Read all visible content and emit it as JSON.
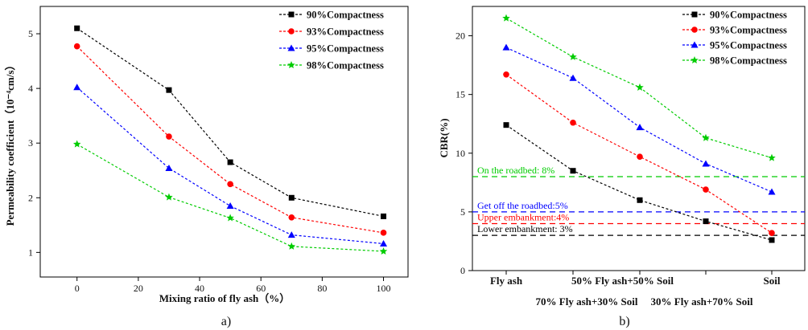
{
  "chart_data": [
    {
      "type": "line",
      "panel": "a)",
      "xlabel": "Mixing ratio of fly ash（%）",
      "ylabel": "Permeability coefficient（10⁻⁴cm/s）",
      "xlim": [
        -12,
        108
      ],
      "ylim": [
        0.55,
        5.5
      ],
      "xticks": [
        0,
        20,
        40,
        60,
        80,
        100
      ],
      "yticks": [
        1,
        2,
        3,
        4,
        5
      ],
      "x": [
        0,
        30,
        50,
        70,
        100
      ],
      "series": [
        {
          "name": "90%Compactness",
          "color": "#000000",
          "marker": "square",
          "values": [
            5.1,
            3.97,
            2.65,
            2.0,
            1.66
          ]
        },
        {
          "name": "93%Compactness",
          "color": "#ff0000",
          "marker": "circle",
          "values": [
            4.77,
            3.12,
            2.25,
            1.64,
            1.36
          ]
        },
        {
          "name": "95%Compactness",
          "color": "#0000ff",
          "marker": "triangle",
          "values": [
            4.02,
            2.54,
            1.85,
            1.32,
            1.16
          ]
        },
        {
          "name": "98%Compactness",
          "color": "#00cc00",
          "marker": "star",
          "values": [
            2.98,
            2.01,
            1.63,
            1.11,
            1.02
          ]
        }
      ],
      "legend": "top-right",
      "grid": false
    },
    {
      "type": "line",
      "panel": "b)",
      "xlabel": "",
      "ylabel": "CBR(%)",
      "ylim": [
        0,
        22.5
      ],
      "yticks": [
        0,
        5,
        10,
        15,
        20
      ],
      "categories": [
        "Fly ash",
        "70% Fly ash+30% Soil",
        "50% Fly ash+50% Soil",
        "30% Fly ash+70% Soil",
        "Soil"
      ],
      "category_label_row": [
        "top",
        "bottom",
        "top",
        "bottom",
        "top"
      ],
      "series": [
        {
          "name": "90%Compactness",
          "color": "#000000",
          "marker": "square",
          "values": [
            12.4,
            8.5,
            6.0,
            4.2,
            2.6
          ]
        },
        {
          "name": "93%Compactness",
          "color": "#ff0000",
          "marker": "circle",
          "values": [
            16.7,
            12.6,
            9.7,
            6.9,
            3.2
          ]
        },
        {
          "name": "95%Compactness",
          "color": "#0000ff",
          "marker": "triangle",
          "values": [
            19.0,
            16.4,
            12.2,
            9.1,
            6.7
          ]
        },
        {
          "name": "98%Compactness",
          "color": "#00cc00",
          "marker": "star",
          "values": [
            21.5,
            18.2,
            15.6,
            11.3,
            9.6
          ]
        }
      ],
      "reference_lines": [
        {
          "label": "On the roadbed: 8%",
          "value": 8,
          "color": "#00cc00"
        },
        {
          "label": "Get off the roadbed:5%",
          "value": 5,
          "color": "#0000ff"
        },
        {
          "label": "Upper embankment:4%",
          "value": 4,
          "color": "#ff0000"
        },
        {
          "label": "Lower embankment: 3%",
          "value": 3,
          "color": "#000000"
        }
      ],
      "legend": "top-right",
      "grid": false
    }
  ]
}
